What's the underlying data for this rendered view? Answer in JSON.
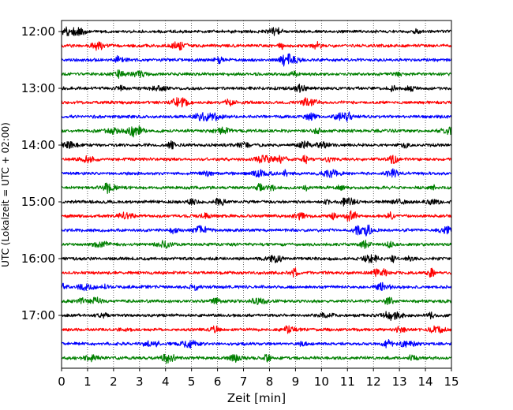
{
  "chart_data": {
    "type": "line",
    "xlabel": "Zeit  [min]",
    "ylabel": "UTC (Lokalzeit = UTC + 02:00)",
    "xlim": [
      0,
      15
    ],
    "x_ticks": [
      "0",
      "1",
      "2",
      "3",
      "4",
      "5",
      "6",
      "7",
      "8",
      "9",
      "10",
      "11",
      "12",
      "13",
      "14",
      "15"
    ],
    "y_ticks": [
      "12:00",
      "13:00",
      "14:00",
      "15:00",
      "16:00",
      "17:00"
    ],
    "grid": "vertical dotted",
    "trace_interval_minutes": 15,
    "first_trace": "12:00",
    "trace_count": 24,
    "trace_colors": [
      "#000000",
      "#ff0000",
      "#0000ff",
      "#008000"
    ],
    "series": [
      {
        "start": "12:00"
      },
      {
        "start": "12:15"
      },
      {
        "start": "12:30"
      },
      {
        "start": "12:45"
      },
      {
        "start": "13:00"
      },
      {
        "start": "13:15"
      },
      {
        "start": "13:30"
      },
      {
        "start": "13:45"
      },
      {
        "start": "14:00"
      },
      {
        "start": "14:15"
      },
      {
        "start": "14:30"
      },
      {
        "start": "14:45"
      },
      {
        "start": "15:00"
      },
      {
        "start": "15:15"
      },
      {
        "start": "15:30"
      },
      {
        "start": "15:45"
      },
      {
        "start": "16:00"
      },
      {
        "start": "16:15"
      },
      {
        "start": "16:30"
      },
      {
        "start": "16:45"
      },
      {
        "start": "17:00"
      },
      {
        "start": "17:15"
      },
      {
        "start": "17:30"
      },
      {
        "start": "17:45"
      }
    ]
  }
}
